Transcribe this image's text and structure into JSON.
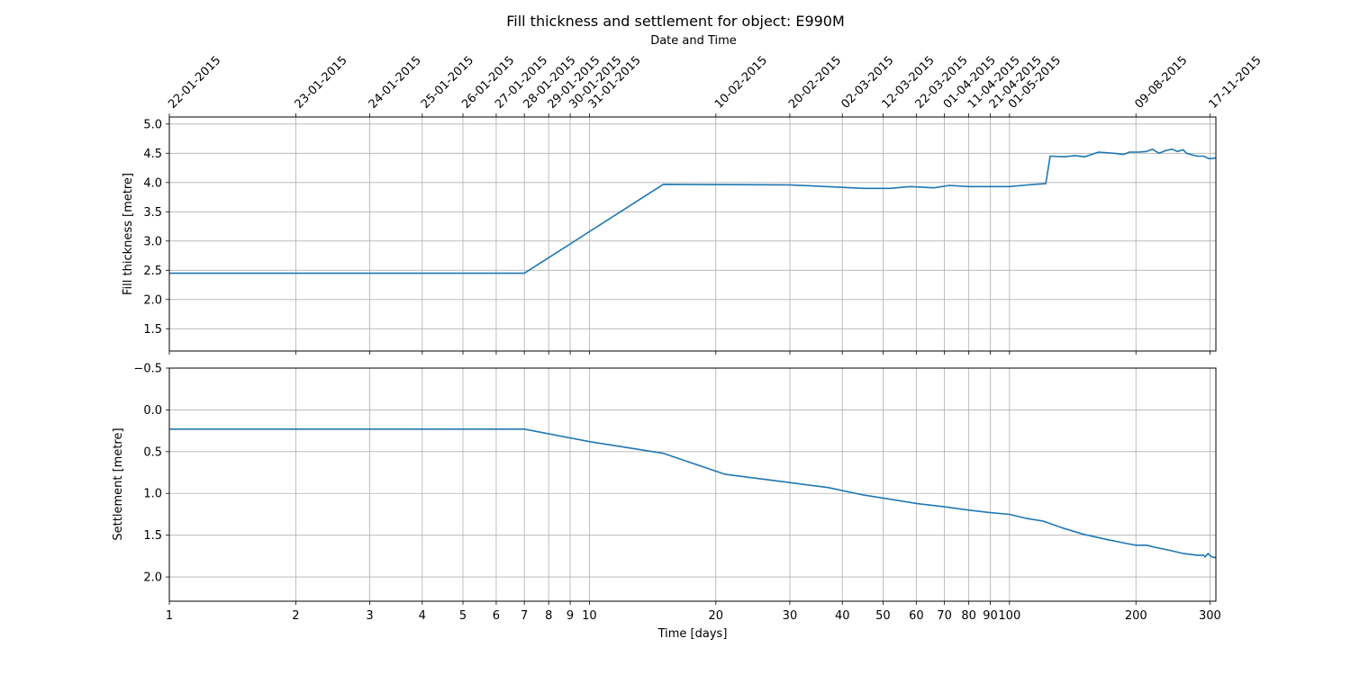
{
  "chart_data": {
    "type": "line",
    "title": "Fill thickness and settlement for object: E990M",
    "top_axis_label": "Date and Time",
    "xlabel": "Time [days]",
    "x_scale": "log",
    "xlim": [
      1,
      310
    ],
    "grid": true,
    "x_ticks": [
      {
        "value": 1,
        "label": "1"
      },
      {
        "value": 2,
        "label": "2"
      },
      {
        "value": 3,
        "label": "3"
      },
      {
        "value": 4,
        "label": "4"
      },
      {
        "value": 5,
        "label": "5"
      },
      {
        "value": 6,
        "label": "6"
      },
      {
        "value": 7,
        "label": "7"
      },
      {
        "value": 8,
        "label": "8"
      },
      {
        "value": 9,
        "label": "9"
      },
      {
        "value": 10,
        "label": "10"
      },
      {
        "value": 20,
        "label": "20"
      },
      {
        "value": 30,
        "label": "30"
      },
      {
        "value": 40,
        "label": "40"
      },
      {
        "value": 50,
        "label": "50"
      },
      {
        "value": 60,
        "label": "60"
      },
      {
        "value": 70,
        "label": "70"
      },
      {
        "value": 80,
        "label": "80"
      },
      {
        "value": 90,
        "label": "90"
      },
      {
        "value": 100,
        "label": "100"
      },
      {
        "value": 200,
        "label": "200"
      },
      {
        "value": 300,
        "label": "300"
      }
    ],
    "date_ticks": [
      {
        "day": 1,
        "label": "22-01-2015"
      },
      {
        "day": 2,
        "label": "23-01-2015"
      },
      {
        "day": 3,
        "label": "24-01-2015"
      },
      {
        "day": 4,
        "label": "25-01-2015"
      },
      {
        "day": 5,
        "label": "26-01-2015"
      },
      {
        "day": 6,
        "label": "27-01-2015"
      },
      {
        "day": 7,
        "label": "28-01-2015"
      },
      {
        "day": 8,
        "label": "29-01-2015"
      },
      {
        "day": 9,
        "label": "30-01-2015"
      },
      {
        "day": 10,
        "label": "31-01-2015"
      },
      {
        "day": 20,
        "label": "10-02-2015"
      },
      {
        "day": 30,
        "label": "20-02-2015"
      },
      {
        "day": 40,
        "label": "02-03-2015"
      },
      {
        "day": 50,
        "label": "12-03-2015"
      },
      {
        "day": 60,
        "label": "22-03-2015"
      },
      {
        "day": 70,
        "label": "01-04-2015"
      },
      {
        "day": 80,
        "label": "11-04-2015"
      },
      {
        "day": 90,
        "label": "21-04-2015"
      },
      {
        "day": 100,
        "label": "01-05-2015"
      },
      {
        "day": 200,
        "label": "09-08-2015"
      },
      {
        "day": 300,
        "label": "17-11-2015"
      }
    ],
    "panels": [
      {
        "ylabel": "Fill thickness [metre]",
        "ylim": [
          1.12,
          5.12
        ],
        "y_inverted": false,
        "y_ticks": [
          {
            "value": 1.5,
            "label": "1.5"
          },
          {
            "value": 2.0,
            "label": "2.0"
          },
          {
            "value": 2.5,
            "label": "2.5"
          },
          {
            "value": 3.0,
            "label": "3.0"
          },
          {
            "value": 3.5,
            "label": "3.5"
          },
          {
            "value": 4.0,
            "label": "4.0"
          },
          {
            "value": 4.5,
            "label": "4.5"
          },
          {
            "value": 5.0,
            "label": "5.0"
          }
        ],
        "color": "#1f77b4",
        "x": [
          1,
          7,
          15,
          30,
          45,
          52,
          58,
          66,
          72,
          80,
          100,
          115,
          122,
          125,
          135,
          143,
          151,
          163,
          177,
          187,
          193,
          203,
          212,
          219,
          227,
          236,
          244,
          251,
          259,
          264,
          270,
          280,
          290,
          298,
          303,
          310
        ],
        "y": [
          2.45,
          2.45,
          3.97,
          3.96,
          3.9,
          3.9,
          3.93,
          3.91,
          3.95,
          3.93,
          3.93,
          3.97,
          3.98,
          4.45,
          4.44,
          4.46,
          4.44,
          4.52,
          4.5,
          4.48,
          4.52,
          4.52,
          4.53,
          4.57,
          4.5,
          4.55,
          4.57,
          4.53,
          4.56,
          4.5,
          4.48,
          4.45,
          4.45,
          4.41,
          4.41,
          4.42
        ]
      },
      {
        "ylabel": "Settlement [metre]",
        "ylim": [
          2.29,
          -0.5
        ],
        "y_inverted": true,
        "y_ticks": [
          {
            "value": -0.5,
            "label": "−0.5"
          },
          {
            "value": 0.0,
            "label": "0.0"
          },
          {
            "value": 0.5,
            "label": "0.5"
          },
          {
            "value": 1.0,
            "label": "1.0"
          },
          {
            "value": 1.5,
            "label": "1.5"
          },
          {
            "value": 2.0,
            "label": "2.0"
          }
        ],
        "color": "#1f77b4",
        "x": [
          1,
          7,
          10,
          15,
          21,
          30,
          37,
          45,
          52,
          60,
          70,
          80,
          90,
          100,
          110,
          120,
          135,
          150,
          170,
          190,
          200,
          212,
          220,
          240,
          260,
          280,
          290,
          292,
          297,
          303,
          310
        ],
        "y": [
          0.23,
          0.23,
          0.38,
          0.52,
          0.77,
          0.87,
          0.93,
          1.02,
          1.07,
          1.12,
          1.16,
          1.2,
          1.23,
          1.25,
          1.3,
          1.33,
          1.42,
          1.49,
          1.55,
          1.6,
          1.62,
          1.62,
          1.64,
          1.68,
          1.72,
          1.74,
          1.74,
          1.76,
          1.72,
          1.76,
          1.77
        ]
      }
    ]
  }
}
